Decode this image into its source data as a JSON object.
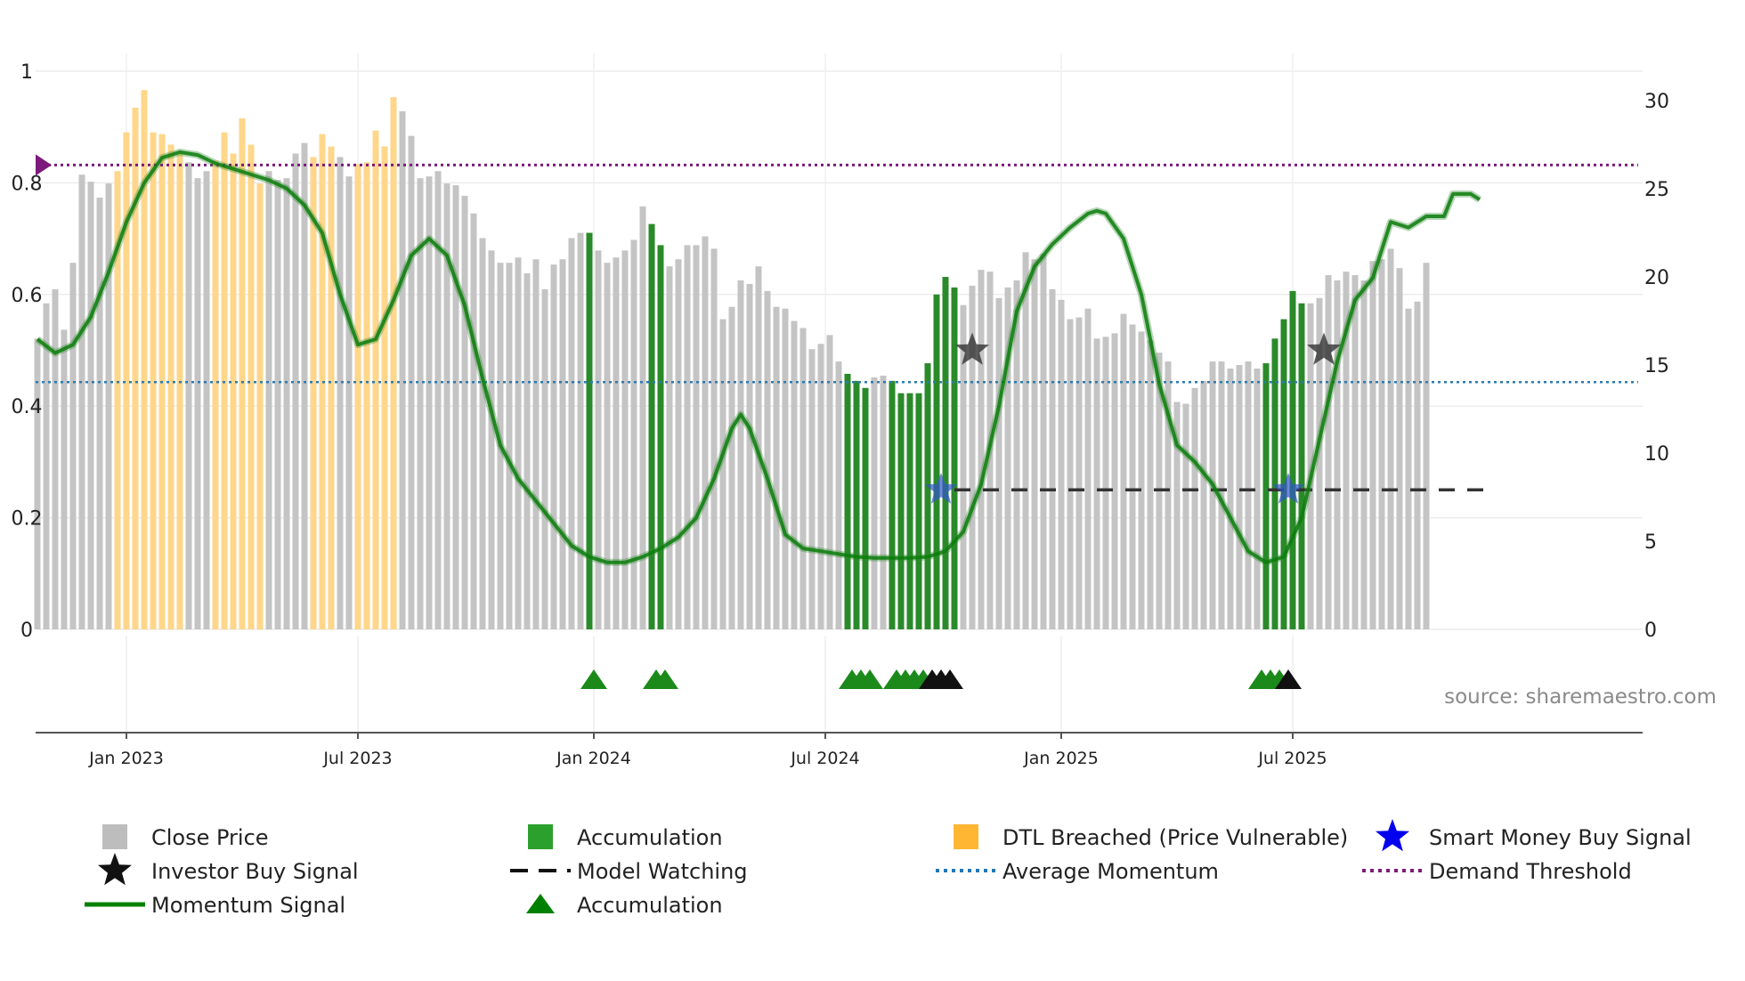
{
  "chart_data": {
    "type": "bar",
    "title": "",
    "source": "source: sharemaestro.com",
    "x_axis": {
      "ticks": [
        {
          "label": "Jan 2023",
          "index": 10
        },
        {
          "label": "Jul 2023",
          "index": 36
        },
        {
          "label": "Jan 2024",
          "index": 62.5
        },
        {
          "label": "Jul 2024",
          "index": 88.5
        },
        {
          "label": "Jan 2025",
          "index": 115
        },
        {
          "label": "Jul 2025",
          "index": 141
        }
      ]
    },
    "left_axis": {
      "ylim": [
        0,
        1
      ],
      "ticks": [
        "0",
        "0.2",
        "0.4",
        "0.6",
        "0.8",
        "1"
      ]
    },
    "right_axis": {
      "ylim": [
        0,
        30
      ],
      "ticks": [
        "0",
        "5",
        "10",
        "15",
        "20",
        "25",
        "30"
      ]
    },
    "close_price": [
      16.5,
      18.5,
      19.3,
      17,
      20.8,
      25.8,
      25.4,
      24.5,
      25.3,
      26,
      28.2,
      29.6,
      30.6,
      28.2,
      28.1,
      27.5,
      27,
      26.5,
      25.6,
      26,
      26.6,
      28.2,
      27,
      29,
      27.5,
      25.3,
      26,
      25.5,
      25.6,
      27,
      27.6,
      26.8,
      28.1,
      27.4,
      26.8,
      25.7,
      26.4,
      26.5,
      28.3,
      27.4,
      30.2,
      29.4,
      28,
      25.6,
      25.7,
      26,
      25.3,
      25.2,
      24.6,
      23.6,
      22.2,
      21.5,
      20.8,
      20.8,
      21.1,
      20.2,
      21,
      19.3,
      20.7,
      21,
      22.2,
      22.5,
      22.5,
      21.5,
      20.8,
      21.1,
      21.5,
      22.1,
      24,
      23,
      21.8,
      20.6,
      21,
      21.8,
      21.8,
      22.3,
      21.6,
      17.6,
      18.3,
      19.8,
      19.6,
      20.6,
      19.2,
      18.3,
      18.2,
      17.5,
      17.1,
      15.9,
      16.2,
      16.7,
      15.2,
      14.5,
      14.1,
      13.7,
      14.3,
      14.4,
      14.1,
      13.4,
      13.4,
      13.4,
      15.1,
      19,
      20,
      19.4,
      18.4,
      19.5,
      20.4,
      20.3,
      18.8,
      19.4,
      19.8,
      21.4,
      21,
      21.3,
      19.3,
      18.7,
      17.6,
      17.7,
      18.2,
      16.5,
      16.6,
      16.8,
      17.9,
      17.3,
      16.9,
      16.4,
      15.7,
      15.2,
      12.9,
      12.8,
      13.7,
      14.1,
      15.2,
      15.2,
      14.8,
      15,
      15.2,
      14.8,
      15.1,
      16.5,
      17.6,
      19.2,
      18.5,
      18.5,
      18.8,
      20.1,
      19.8,
      20.3,
      20.1,
      19.8,
      20.9,
      21,
      21.6,
      20.5,
      18.2,
      18.6,
      20.8
    ],
    "accumulation_bars": [
      62,
      69,
      70,
      91,
      92,
      93,
      96,
      97,
      98,
      99,
      100,
      101,
      102,
      103,
      138,
      139,
      140,
      141,
      142
    ],
    "dtl_breached_bars": [
      9,
      10,
      11,
      12,
      13,
      14,
      15,
      16,
      20,
      21,
      22,
      23,
      24,
      25,
      31,
      32,
      33,
      36,
      37,
      38,
      39,
      40
    ],
    "momentum": [
      [
        0,
        0.52
      ],
      [
        2,
        0.495
      ],
      [
        4,
        0.51
      ],
      [
        6,
        0.56
      ],
      [
        8,
        0.64
      ],
      [
        10,
        0.73
      ],
      [
        12,
        0.8
      ],
      [
        14,
        0.845
      ],
      [
        16,
        0.855
      ],
      [
        18,
        0.85
      ],
      [
        20,
        0.835
      ],
      [
        22,
        0.825
      ],
      [
        24,
        0.815
      ],
      [
        26,
        0.805
      ],
      [
        28,
        0.79
      ],
      [
        30,
        0.76
      ],
      [
        32,
        0.71
      ],
      [
        34,
        0.6
      ],
      [
        36,
        0.51
      ],
      [
        38,
        0.52
      ],
      [
        40,
        0.59
      ],
      [
        42,
        0.67
      ],
      [
        44,
        0.7
      ],
      [
        46,
        0.67
      ],
      [
        48,
        0.58
      ],
      [
        50,
        0.45
      ],
      [
        52,
        0.33
      ],
      [
        54,
        0.27
      ],
      [
        56,
        0.23
      ],
      [
        58,
        0.19
      ],
      [
        60,
        0.15
      ],
      [
        62,
        0.13
      ],
      [
        64,
        0.12
      ],
      [
        66,
        0.12
      ],
      [
        68,
        0.13
      ],
      [
        70,
        0.145
      ],
      [
        72,
        0.165
      ],
      [
        74,
        0.2
      ],
      [
        76,
        0.27
      ],
      [
        78,
        0.36
      ],
      [
        79,
        0.385
      ],
      [
        80,
        0.36
      ],
      [
        82,
        0.27
      ],
      [
        84,
        0.17
      ],
      [
        86,
        0.145
      ],
      [
        88,
        0.14
      ],
      [
        90,
        0.135
      ],
      [
        92,
        0.13
      ],
      [
        94,
        0.128
      ],
      [
        96,
        0.128
      ],
      [
        98,
        0.128
      ],
      [
        100,
        0.13
      ],
      [
        102,
        0.14
      ],
      [
        104,
        0.175
      ],
      [
        106,
        0.26
      ],
      [
        108,
        0.4
      ],
      [
        110,
        0.57
      ],
      [
        112,
        0.65
      ],
      [
        114,
        0.69
      ],
      [
        116,
        0.72
      ],
      [
        118,
        0.745
      ],
      [
        119,
        0.75
      ],
      [
        120,
        0.745
      ],
      [
        122,
        0.7
      ],
      [
        124,
        0.6
      ],
      [
        126,
        0.44
      ],
      [
        128,
        0.33
      ],
      [
        130,
        0.3
      ],
      [
        132,
        0.26
      ],
      [
        134,
        0.2
      ],
      [
        136,
        0.14
      ],
      [
        138,
        0.12
      ],
      [
        140,
        0.13
      ],
      [
        142,
        0.2
      ],
      [
        144,
        0.34
      ],
      [
        146,
        0.48
      ],
      [
        148,
        0.59
      ],
      [
        150,
        0.63
      ],
      [
        152,
        0.73
      ],
      [
        154,
        0.72
      ],
      [
        156,
        0.74
      ],
      [
        158,
        0.74
      ],
      [
        159,
        0.78
      ],
      [
        161,
        0.78
      ],
      [
        162,
        0.77
      ]
    ],
    "average_momentum": 0.443,
    "demand_threshold": 0.832,
    "model_watching": {
      "level": 0.25,
      "x_start": 103,
      "x_end": 163
    },
    "investor_buy_signals": [
      [
        105,
        0.5
      ],
      [
        144.5,
        0.5
      ]
    ],
    "smart_money_buy_signals": [
      [
        101.5,
        0.25
      ],
      [
        140.5,
        0.25
      ]
    ],
    "accumulation_markers": {
      "green": [
        62.5,
        69.5,
        70.5,
        91.5,
        92.5,
        93.5,
        96.5,
        97.5,
        98.5,
        99.5,
        137.5,
        138.5,
        139.5
      ],
      "black": [
        100.5,
        101.5,
        102.5,
        140.5
      ]
    },
    "legend": [
      {
        "label": "Close Price",
        "marker": "square",
        "color": "#bdbdbd"
      },
      {
        "label": "Accumulation",
        "marker": "square",
        "color": "#2ca02c"
      },
      {
        "label": "DTL Breached (Price Vulnerable)",
        "marker": "square",
        "color": "#ffb733"
      },
      {
        "label": "Smart Money Buy Signal",
        "marker": "star",
        "color": "#0000ee"
      },
      {
        "label": "Investor Buy Signal",
        "marker": "star",
        "color": "#111111"
      },
      {
        "label": "Model Watching",
        "marker": "dash",
        "color": "#111111"
      },
      {
        "label": "Average Momentum",
        "marker": "dotted",
        "color": "#1f77b4"
      },
      {
        "label": "Demand Threshold",
        "marker": "dotted",
        "color": "#7b1a7b"
      },
      {
        "label": "Momentum Signal",
        "marker": "line",
        "color": "#008000"
      },
      {
        "label": "Accumulation",
        "marker": "triangle",
        "color": "#008000"
      }
    ]
  }
}
